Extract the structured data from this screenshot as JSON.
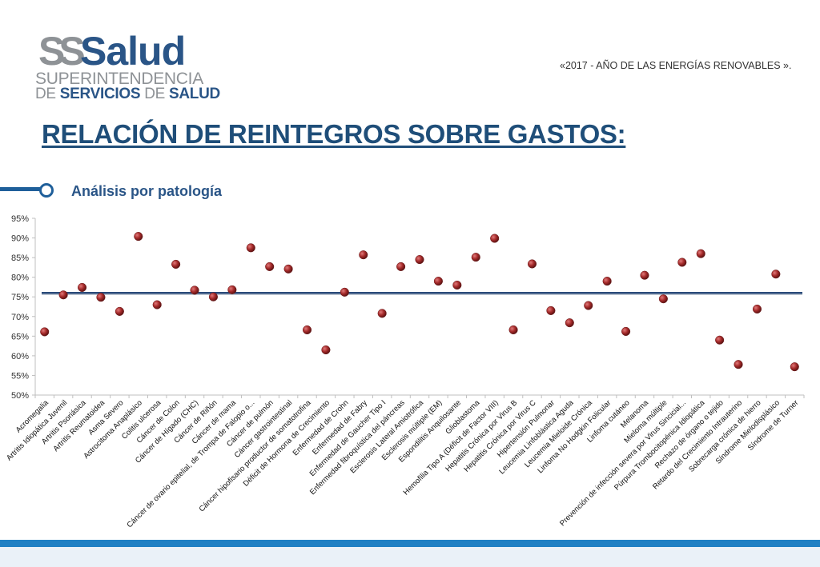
{
  "logo": {
    "mark": "SS",
    "brand": "Salud",
    "line1": "SUPERINTENDENCIA",
    "line2_de": "DE",
    "line2_servicios": "SERVICIOS",
    "line2_de2": "DE",
    "line2_salud": "SALUD"
  },
  "motto": "«2017 - AÑO DE LAS ENERGÍAS RENOVABLES ».",
  "title": "RELACIÓN DE REINTEGROS SOBRE GASTOS:",
  "subtitle": "Análisis por patología",
  "colors": {
    "title": "#1f4e79",
    "point": "#a52a2a",
    "reference_line": "#2b4b7a",
    "footer": "#1f80c4"
  },
  "chart_data": {
    "type": "scatter",
    "title": "",
    "xlabel": "",
    "ylabel": "",
    "ylim": [
      0.5,
      0.95
    ],
    "yticks": [
      "95%",
      "90%",
      "85%",
      "80%",
      "75%",
      "70%",
      "65%",
      "60%",
      "55%",
      "50%"
    ],
    "reference_line": 0.76,
    "grid": false,
    "categories": [
      "Acromegalia",
      "Artritis Idiopática Juvenil",
      "Artritis Psoriásica",
      "Artritis Reumatoidea",
      "Asma Severo",
      "Astrocitoma Anaplásico",
      "Colitis ulcerosa",
      "Cáncer de Colon",
      "Cáncer de Hígado (CHC)",
      "Cáncer de Riñón",
      "Cáncer de mama",
      "Cáncer de ovario epitelial, de Trompa de Falopio o...",
      "Cáncer de pulmón",
      "Cáncer gastrointestinal",
      "Cáncer hipofisario productor de somatotrofina",
      "Déficit de Hormona de Crecimiento",
      "Enfermedad de Crohn",
      "Enfermedad de Fabry",
      "Enfermedad de Gaucher Tipo I",
      "Enfermedad fibroquística del páncreas",
      "Esclerosis Lateral Amiotrófica",
      "Esclerosis múltiple (EM)",
      "Espondilitis Anquilosante",
      "Glioblastoma",
      "Hemofilia Tipo A (Déficit de Factor VIII)",
      "Hepatitis Crónica por Virus B",
      "Hepatitis Crónica por Virus C",
      "Hipertensión Pulmonar",
      "Leucemia Linfoblástica Aguda",
      "Leucemia Mieloide Crónica",
      "Linfoma No Hodgkin Folicular",
      "Linfoma cutáneo",
      "Melanoma",
      "Mieloma múltiple",
      "Prevención de infección severa por Virus Sincicial...",
      "Púrpura Trombocitopénica Idiopática",
      "Rechazo de órgano o tejido",
      "Retardo del Crecimiento Intrauterino",
      "Sobrecarga crónica de hierro",
      "Síndrome Mielodisplásico",
      "Síndrome de Turner"
    ],
    "values": [
      0.661,
      0.755,
      0.774,
      0.749,
      0.713,
      0.904,
      0.73,
      0.833,
      0.767,
      0.75,
      0.768,
      0.875,
      0.827,
      0.821,
      0.666,
      0.615,
      0.762,
      0.857,
      0.708,
      0.827,
      0.845,
      0.79,
      0.78,
      0.851,
      0.899,
      0.666,
      0.834,
      0.715,
      0.684,
      0.728,
      0.79,
      0.662,
      0.805,
      0.745,
      0.838,
      0.86,
      0.64,
      0.578,
      0.719,
      0.808,
      0.572
    ]
  }
}
